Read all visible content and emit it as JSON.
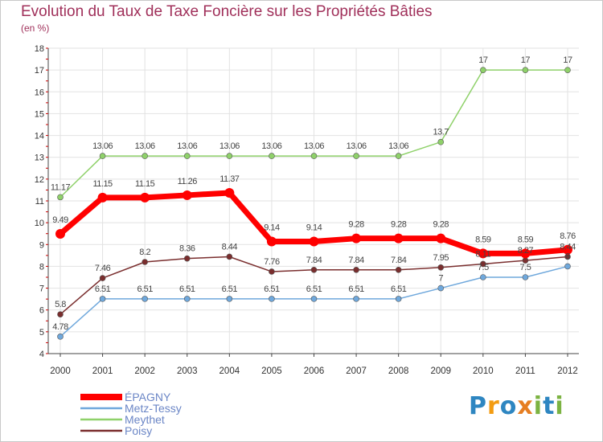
{
  "chart_data": {
    "type": "line",
    "title": "Evolution du Taux de Taxe Foncière sur les Propriétés Bâties",
    "ylabel": "(en %)",
    "xlabel": "",
    "x": [
      "2000",
      "2001",
      "2002",
      "2003",
      "2004",
      "2005",
      "2006",
      "2007",
      "2008",
      "2009",
      "2010",
      "2011",
      "2012"
    ],
    "yticks": [
      "4",
      "5",
      "6",
      "7",
      "8",
      "9",
      "10",
      "11",
      "12",
      "13",
      "14",
      "15",
      "16",
      "17",
      "18"
    ],
    "ylim": [
      4,
      18
    ],
    "legend_position": "bottom-left",
    "series": [
      {
        "name": "ÉPAGNY",
        "color": "#ff0000",
        "values": [
          9.49,
          11.15,
          11.15,
          11.26,
          11.37,
          9.14,
          9.14,
          9.28,
          9.28,
          9.28,
          8.59,
          8.59,
          8.76
        ],
        "labels": [
          "9.49",
          "11.15",
          "11.15",
          "11.26",
          "11.37",
          "9.14",
          "9.14",
          "9.28",
          "9.28",
          "9.28",
          "8.59",
          "8.59",
          "8.76"
        ]
      },
      {
        "name": "Metz-Tessy",
        "color": "#6fa8dc",
        "values": [
          4.78,
          6.51,
          6.51,
          6.51,
          6.51,
          6.51,
          6.51,
          6.51,
          6.51,
          7,
          7.5,
          7.5,
          8
        ],
        "labels": [
          "4.78",
          "6.51",
          "6.51",
          "6.51",
          "6.51",
          "6.51",
          "6.51",
          "6.51",
          "6.51",
          "7",
          "7.5",
          "7.5",
          "8"
        ]
      },
      {
        "name": "Meythet",
        "color": "#8fd16a",
        "values": [
          11.17,
          13.06,
          13.06,
          13.06,
          13.06,
          13.06,
          13.06,
          13.06,
          13.06,
          13.7,
          17,
          17,
          17
        ],
        "labels": [
          "11.17",
          "13.06",
          "13.06",
          "13.06",
          "13.06",
          "13.06",
          "13.06",
          "13.06",
          "13.06",
          "13.7",
          "17",
          "17",
          "17"
        ]
      },
      {
        "name": "Poisy",
        "color": "#7a2e2e",
        "values": [
          5.8,
          7.46,
          8.2,
          8.36,
          8.44,
          7.76,
          7.84,
          7.84,
          7.84,
          7.95,
          8.11,
          8.27,
          8.44
        ],
        "labels": [
          "5.8",
          "7.46",
          "8.2",
          "8.36",
          "8.44",
          "7.76",
          "7.84",
          "7.84",
          "7.84",
          "7.95",
          "8.11",
          "8.27",
          "8.44"
        ]
      }
    ]
  },
  "logo": {
    "letters": [
      "P",
      "r",
      "o",
      "x",
      "i",
      "t",
      "i"
    ],
    "colors": [
      "#2e86c1",
      "#f39c12",
      "#2e86c1",
      "#e67e22",
      "#7cb342",
      "#2e86c1",
      "#7cb342"
    ]
  }
}
